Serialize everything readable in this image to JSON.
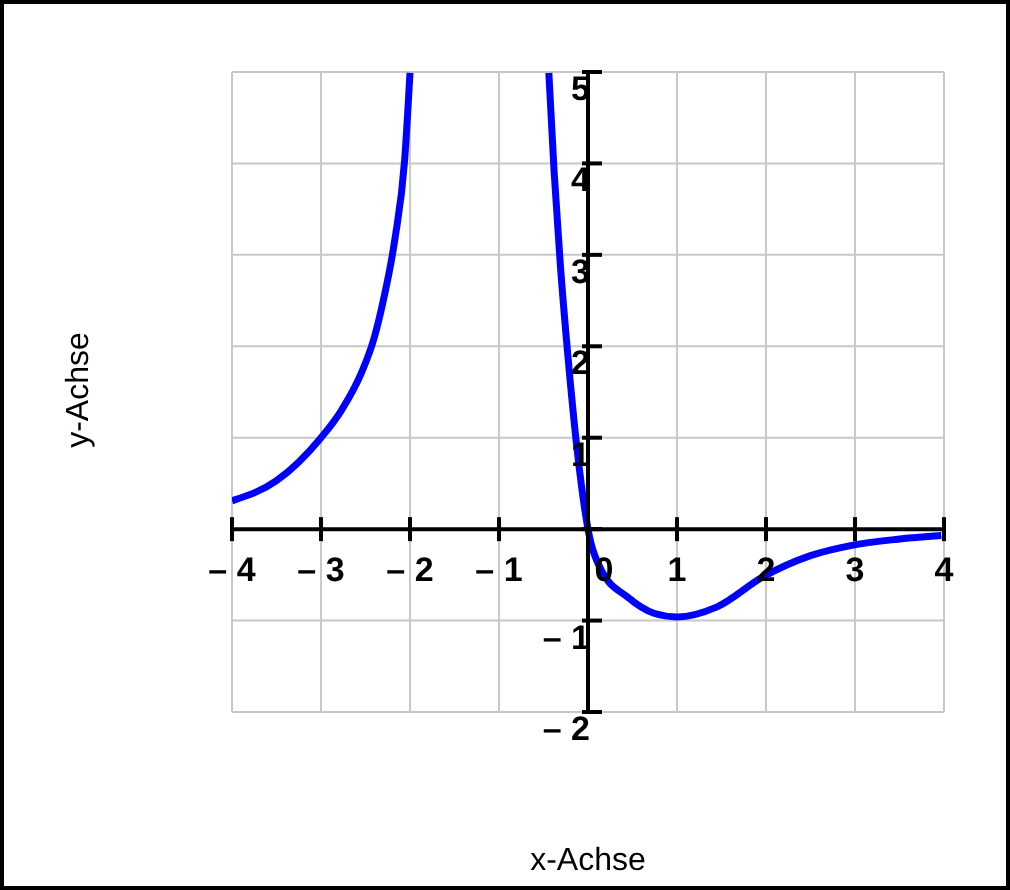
{
  "chart_data": {
    "type": "line",
    "xlabel": "x-Achse",
    "ylabel": "y-Achse",
    "xlim": [
      -4,
      4
    ],
    "ylim": [
      -2,
      5
    ],
    "xticks": [
      {
        "value": -4,
        "label": "– 4"
      },
      {
        "value": -3,
        "label": "– 3"
      },
      {
        "value": -2,
        "label": "– 2"
      },
      {
        "value": -1,
        "label": "– 1"
      },
      0,
      1,
      2,
      3,
      4
    ],
    "yticks": [
      {
        "value": -2,
        "label": "– 2"
      },
      {
        "value": -1,
        "label": "– 1"
      },
      {
        "value": 0,
        "label": null
      },
      1,
      2,
      3,
      4,
      5
    ],
    "grid": true,
    "marker": "none",
    "line_style": "solid",
    "series": [
      {
        "color": "#0000ff",
        "x": [
          -4,
          -3.5,
          -3,
          -2.77,
          -2.55,
          -2.4,
          -2.3,
          -2.17,
          -2.06,
          -2.0
        ],
        "values": [
          0.31,
          0.53,
          1.0,
          1.3,
          1.7,
          2.1,
          2.5,
          3.17,
          4.04,
          4.99
        ]
      },
      {
        "color": "#0000ff",
        "x": [
          -0.44,
          -0.38,
          -0.31,
          -0.23,
          -0.12,
          0,
          0.15,
          0.44,
          0.74,
          1.0,
          1.45,
          1.97,
          2.5,
          2.95,
          3.48,
          3.97
        ],
        "values": [
          4.99,
          3.9,
          2.88,
          1.94,
          0.85,
          0,
          -0.45,
          -0.74,
          -0.92,
          -0.96,
          -0.85,
          -0.52,
          -0.29,
          -0.18,
          -0.11,
          -0.07
        ]
      }
    ]
  }
}
